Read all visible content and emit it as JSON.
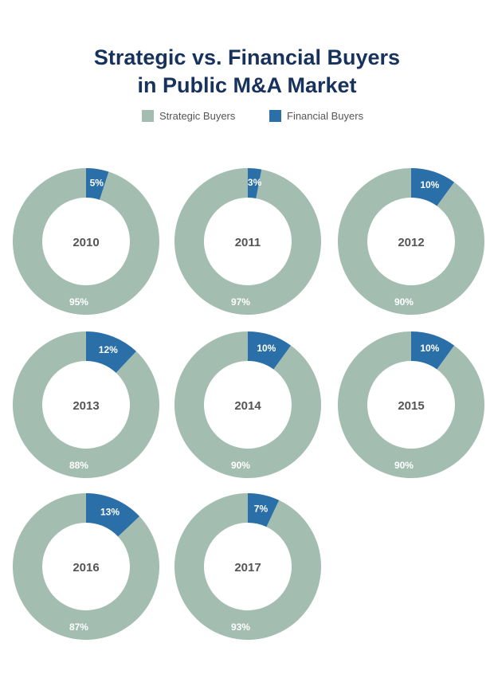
{
  "title": {
    "line1": "Strategic vs. Financial Buyers",
    "line2": "in Public M&A Market"
  },
  "legend": [
    {
      "label": "Strategic Buyers",
      "color": "#a3bdb1"
    },
    {
      "label": "Financial Buyers",
      "color": "#2a6fa8"
    }
  ],
  "chart_data": {
    "type": "pie",
    "variant": "donut",
    "series_names": [
      "Strategic Buyers",
      "Financial Buyers"
    ],
    "colors": {
      "strategic": "#a3bdb1",
      "financial": "#2a6fa8"
    },
    "charts": [
      {
        "year": "2010",
        "financial": 5,
        "strategic": 95,
        "financial_label": "5%",
        "strategic_label": "95%"
      },
      {
        "year": "2011",
        "financial": 3,
        "strategic": 97,
        "financial_label": "3%",
        "strategic_label": "97%"
      },
      {
        "year": "2012",
        "financial": 10,
        "strategic": 90,
        "financial_label": "10%",
        "strategic_label": "90%"
      },
      {
        "year": "2013",
        "financial": 12,
        "strategic": 88,
        "financial_label": "12%",
        "strategic_label": "88%"
      },
      {
        "year": "2014",
        "financial": 10,
        "strategic": 90,
        "financial_label": "10%",
        "strategic_label": "90%"
      },
      {
        "year": "2015",
        "financial": 10,
        "strategic": 90,
        "financial_label": "10%",
        "strategic_label": "90%"
      },
      {
        "year": "2016",
        "financial": 13,
        "strategic": 87,
        "financial_label": "13%",
        "strategic_label": "87%"
      },
      {
        "year": "2017",
        "financial": 7,
        "strategic": 93,
        "financial_label": "7%",
        "strategic_label": "93%"
      }
    ]
  }
}
